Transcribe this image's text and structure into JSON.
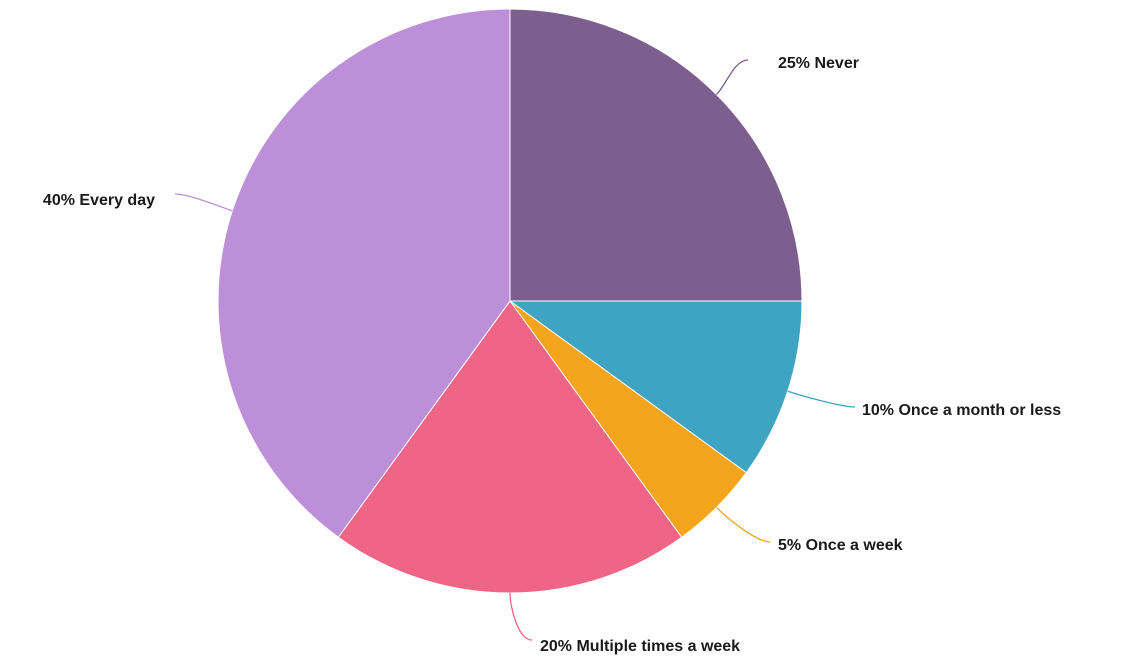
{
  "chart_data": {
    "type": "pie",
    "start": "12 o'clock",
    "direction": "clockwise",
    "slices": [
      {
        "label": "25% Never",
        "value": 25,
        "color": "#7c5f8e"
      },
      {
        "label": "10% Once a month or less",
        "value": 10,
        "color": "#3fa3c2"
      },
      {
        "label": "5% Once a week",
        "value": 5,
        "color": "#f4a41d"
      },
      {
        "label": "20% Multiple times a week",
        "value": 20,
        "color": "#ef6586"
      },
      {
        "label": "40% Every day",
        "value": 40,
        "color": "#be8fd9"
      }
    ]
  }
}
